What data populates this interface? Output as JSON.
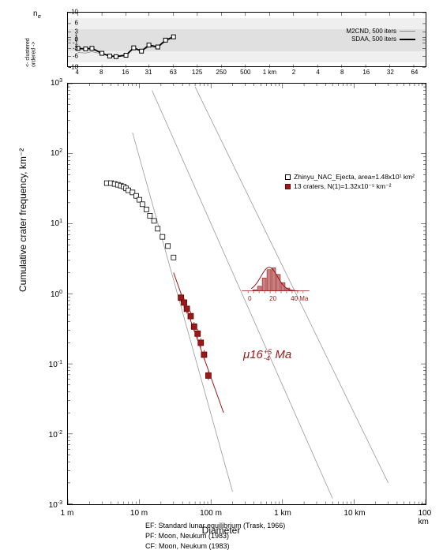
{
  "top_chart": {
    "ylabel_sym": "n",
    "ylabel_sub": "σ",
    "ylabel_arrows": "<- clustered\nordered ->",
    "ylim": [
      -10,
      10
    ],
    "yticks": [
      -10,
      -6,
      -3,
      -1,
      0,
      1,
      3,
      6,
      10
    ],
    "xticks": [
      "4",
      "8",
      "16",
      "31",
      "63",
      "125",
      "250",
      "500",
      "1 km",
      "2",
      "4",
      "8",
      "16",
      "32",
      "64"
    ],
    "band1_lo": -6,
    "band1_hi": 6,
    "band2_lo": -3,
    "band2_hi": 3,
    "legend": [
      "M2CND, 500 iters",
      "SDAA, 500 iters"
    ],
    "series_thin": [
      [
        4,
        -4.5
      ],
      [
        5,
        -4.7
      ],
      [
        6,
        -4.2
      ],
      [
        8,
        -5
      ],
      [
        10,
        -5.5
      ],
      [
        12,
        -5.7
      ],
      [
        16,
        -5.3
      ],
      [
        20,
        -3
      ],
      [
        25,
        -3.8
      ],
      [
        31,
        -2.5
      ],
      [
        40,
        -2.7
      ],
      [
        50,
        -0.5
      ],
      [
        63,
        1
      ]
    ],
    "series_thick": [
      [
        4,
        -3
      ],
      [
        5,
        -3.2
      ],
      [
        6,
        -3
      ],
      [
        8,
        -4.8
      ],
      [
        10,
        -5.8
      ],
      [
        12,
        -6
      ],
      [
        16,
        -5.5
      ],
      [
        20,
        -2.8
      ],
      [
        25,
        -4
      ],
      [
        31,
        -1.8
      ],
      [
        40,
        -2.5
      ],
      [
        50,
        0
      ],
      [
        63,
        1.2
      ]
    ],
    "bg_color": "#efefef",
    "band_color": "#e0e0e0",
    "marker_size": 5
  },
  "main_chart": {
    "xlabel": "Diameter",
    "ylabel": "Cumulative crater frequency, km⁻²",
    "xticks": [
      "1 m",
      "10 m",
      "100 m",
      "1 km",
      "10 km",
      "100 km"
    ],
    "yticks": [
      "10⁻³",
      "10⁻²",
      "10⁻¹",
      "10⁰",
      "10¹",
      "10²",
      "10³"
    ],
    "xlim_log": [
      0,
      5
    ],
    "ylim_log": [
      -3,
      3
    ],
    "legend1": "Zhinyu_NAC_Ejecta, area=1.48x10¹ km²",
    "legend2": "13 craters, N(1)=1.32x10⁻⁵ km⁻²",
    "age_mu": "μ",
    "age_val": "16",
    "age_hi": "+5",
    "age_lo": "-4",
    "age_unit": "Ma",
    "hist_ticks": [
      "0",
      "20",
      "40 Ma"
    ],
    "ref1": "EF: Standard lunar equilibrium (Trask, 1966)",
    "ref2": "PF: Moon, Neukum (1983)",
    "ref3": "CF: Moon, Neukum (1983)",
    "open_points": [
      [
        3.5,
        38
      ],
      [
        4,
        38
      ],
      [
        4.5,
        37
      ],
      [
        5,
        36
      ],
      [
        5.5,
        35
      ],
      [
        6,
        34
      ],
      [
        6.5,
        32
      ],
      [
        7,
        30
      ],
      [
        8,
        28
      ],
      [
        9,
        25
      ],
      [
        10,
        22
      ],
      [
        11,
        19
      ],
      [
        12.5,
        16
      ],
      [
        14,
        13
      ],
      [
        16,
        11
      ],
      [
        18,
        8.5
      ],
      [
        21,
        6.5
      ],
      [
        25,
        4.8
      ],
      [
        30,
        3.3
      ]
    ],
    "filled_points": [
      [
        38,
        0.88
      ],
      [
        42,
        0.75
      ],
      [
        46,
        0.61
      ],
      [
        52,
        0.48
      ],
      [
        58,
        0.34
      ],
      [
        65,
        0.27
      ],
      [
        72,
        0.2
      ],
      [
        80,
        0.135
      ],
      [
        92,
        0.068
      ]
    ],
    "accent_color": "#9a1818",
    "grid_color": "#999999"
  }
}
